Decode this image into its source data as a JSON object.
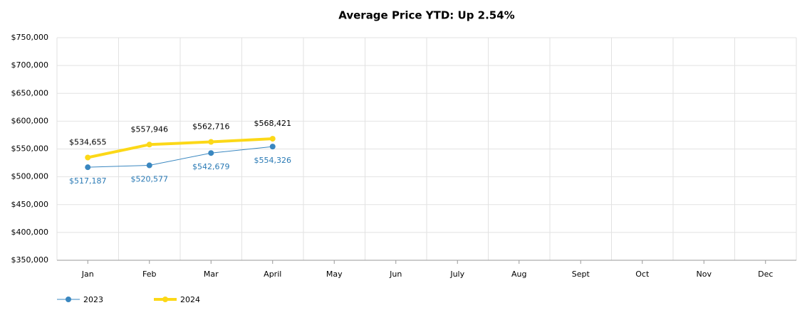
{
  "chart_data": {
    "type": "line",
    "title": "Average Price YTD: Up 2.54%",
    "categories": [
      "Jan",
      "Feb",
      "Mar",
      "April",
      "May",
      "Jun",
      "July",
      "Aug",
      "Sept",
      "Oct",
      "Nov",
      "Dec"
    ],
    "series": [
      {
        "name": "2023",
        "color": "#3a87c0",
        "line_width": 1,
        "values": [
          517187,
          520577,
          542679,
          554326,
          null,
          null,
          null,
          null,
          null,
          null,
          null,
          null
        ],
        "value_labels": [
          "$517,187",
          "$520,577",
          "$542,679",
          "$554,326",
          null,
          null,
          null,
          null,
          null,
          null,
          null,
          null
        ]
      },
      {
        "name": "2024",
        "color": "#fcd817",
        "line_width": 4,
        "values": [
          534655,
          557946,
          562716,
          568421,
          null,
          null,
          null,
          null,
          null,
          null,
          null,
          null
        ],
        "value_labels": [
          "$534,655",
          "$557,946",
          "$562,716",
          "$568,421",
          null,
          null,
          null,
          null,
          null,
          null,
          null,
          null
        ]
      }
    ],
    "ylim": [
      350000,
      750000
    ],
    "yticks": [
      {
        "value": 350000,
        "label": "$350,000"
      },
      {
        "value": 400000,
        "label": "$400,000"
      },
      {
        "value": 450000,
        "label": "$450,000"
      },
      {
        "value": 500000,
        "label": "$500,000"
      },
      {
        "value": 550000,
        "label": "$550,000"
      },
      {
        "value": 600000,
        "label": "$600,000"
      },
      {
        "value": 650000,
        "label": "$650,000"
      },
      {
        "value": 700000,
        "label": "$700,000"
      },
      {
        "value": 750000,
        "label": "$750,000"
      }
    ],
    "grid": true,
    "legend": "bottom-left"
  }
}
